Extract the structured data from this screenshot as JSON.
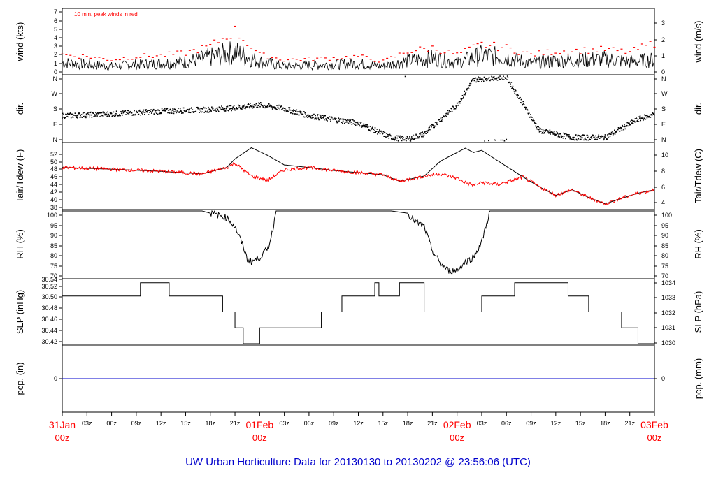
{
  "footer": {
    "title": "UW Urban Horticulture Data for 20130130  to  20130202 @ 23:56:06  (UTC)"
  },
  "colors": {
    "red": "#ff0000",
    "blue": "#0000cc",
    "black": "#000000",
    "title_blue": "#0000cc"
  },
  "x_axis": {
    "hour_ticks": [
      "03z",
      "06z",
      "09z",
      "12z",
      "15z",
      "18z",
      "21z",
      "03z",
      "06z",
      "09z",
      "12z",
      "15z",
      "18z",
      "21z",
      "03z",
      "06z",
      "09z",
      "12z",
      "15z",
      "18z",
      "21z"
    ],
    "day_labels": [
      {
        "day": "31Jan",
        "hour": "00z"
      },
      {
        "day": "01Feb",
        "hour": "00z"
      },
      {
        "day": "02Feb",
        "hour": "00z"
      },
      {
        "day": "03Feb",
        "hour": "00z"
      }
    ]
  },
  "chart_data": [
    {
      "type": "line",
      "panel": "wind",
      "ylabel_left": "wind (kts)",
      "ylabel_right": "wind (m/s)",
      "left_ticks": [
        "0",
        "1",
        "2",
        "3",
        "4",
        "5",
        "6",
        "7"
      ],
      "right_ticks": [
        "0",
        "1",
        "2",
        "3"
      ],
      "ylim": [
        0,
        7.5
      ],
      "annotation": "10 min. peak winds in red",
      "x_hours": [
        0,
        3,
        6,
        9,
        12,
        15,
        18,
        21,
        24,
        27,
        30,
        33,
        36,
        39,
        42,
        45,
        48,
        51,
        54,
        57,
        60,
        63,
        66,
        69,
        72
      ],
      "series": [
        {
          "name": "wind",
          "color": "#000000",
          "values": [
            1.2,
            1.0,
            0.8,
            1.0,
            1.1,
            1.3,
            1.8,
            2.4,
            1.3,
            0.8,
            0.9,
            1.0,
            1.1,
            0.8,
            1.4,
            1.7,
            1.2,
            2.0,
            1.8,
            1.1,
            1.4,
            1.5,
            1.6,
            1.3,
            1.5
          ]
        },
        {
          "name": "peak",
          "color": "#ff0000",
          "values": [
            2.2,
            2.0,
            1.6,
            2.0,
            2.1,
            2.4,
            3.2,
            5.0,
            2.2,
            1.6,
            1.7,
            1.8,
            2.0,
            1.4,
            2.6,
            3.0,
            2.2,
            3.4,
            3.0,
            2.2,
            2.6,
            2.7,
            2.8,
            2.5,
            3.6
          ]
        }
      ]
    },
    {
      "type": "scatter",
      "panel": "dir",
      "ylabel_left": "dir.",
      "ylabel_right": "dir.",
      "left_ticks": [
        "N",
        "E",
        "S",
        "W",
        "N"
      ],
      "right_ticks": [
        "N",
        "E",
        "S",
        "W",
        "N"
      ],
      "ylim": [
        0,
        360
      ]
    },
    {
      "type": "line",
      "panel": "temperature",
      "ylabel_left": "Tair/Tdew (F)",
      "ylabel_right": "Tair/Tdew (C)",
      "left_ticks": [
        "38",
        "40",
        "42",
        "44",
        "46",
        "48",
        "50",
        "52"
      ],
      "right_ticks": [
        "4",
        "6",
        "8",
        "10"
      ],
      "ylim": [
        37.5,
        52.5
      ],
      "x_hours": [
        0,
        6,
        12,
        17,
        20,
        21,
        23,
        25,
        27,
        30,
        33,
        36,
        39,
        41,
        44,
        46,
        48,
        49,
        50,
        51,
        53,
        56,
        58,
        60,
        62,
        64,
        66,
        68,
        70,
        72
      ],
      "series": [
        {
          "name": "Tair",
          "color": "#000000",
          "values": [
            47.0,
            46.6,
            46.1,
            45.5,
            47.0,
            49.0,
            51.6,
            49.8,
            47.6,
            47.0,
            46.3,
            45.8,
            45.3,
            43.8,
            45.0,
            48.5,
            50.5,
            51.5,
            50.5,
            51.0,
            48.5,
            44.8,
            42.5,
            40.5,
            41.8,
            40.0,
            38.5,
            39.8,
            41.0,
            41.8
          ]
        },
        {
          "name": "Tdew",
          "color": "#ff0000",
          "values": [
            47.0,
            46.6,
            46.1,
            45.5,
            47.0,
            48.0,
            45.0,
            44.0,
            46.5,
            47.0,
            46.3,
            45.8,
            45.3,
            43.8,
            45.0,
            45.5,
            44.5,
            43.5,
            42.8,
            43.5,
            43.0,
            44.8,
            42.5,
            40.5,
            41.8,
            40.0,
            38.5,
            39.8,
            41.0,
            41.8
          ]
        }
      ]
    },
    {
      "type": "line",
      "panel": "rh",
      "ylabel_left": "RH (%)",
      "ylabel_right": "RH (%)",
      "left_ticks": [
        "70",
        "75",
        "80",
        "85",
        "90",
        "95",
        "100"
      ],
      "right_ticks": [
        "70",
        "75",
        "80",
        "85",
        "90",
        "95",
        "100"
      ],
      "ylim": [
        70,
        100
      ],
      "x_hours": [
        0,
        17,
        19,
        20,
        21,
        22,
        22.5,
        23,
        24,
        25,
        25.5,
        26,
        30,
        40,
        42,
        43,
        44,
        45,
        46,
        47,
        48,
        49,
        50,
        51,
        52,
        72
      ],
      "series": [
        {
          "name": "RH",
          "color": "#000000",
          "values": [
            100,
            100,
            98,
            97,
            93,
            84,
            78,
            77,
            79,
            83,
            90,
            100,
            100,
            100,
            99,
            95,
            93,
            82,
            76,
            73,
            73,
            77,
            79,
            86,
            100,
            100
          ]
        }
      ]
    },
    {
      "type": "line",
      "panel": "slp",
      "ylabel_left": "SLP (inHg)",
      "ylabel_right": "SLP (hPa)",
      "left_ticks": [
        "30.42",
        "30.44",
        "30.46",
        "30.48",
        "30.50",
        "30.52",
        "30.54"
      ],
      "right_ticks": [
        "1030",
        "1031",
        "1032",
        "1033",
        "1034"
      ],
      "ylim": [
        30.42,
        30.54
      ],
      "x_hours": [
        0,
        9.5,
        13,
        19.5,
        21,
        22,
        24,
        31.5,
        34,
        38,
        38.5,
        41,
        44,
        51,
        51.5,
        55,
        61.5,
        64,
        68,
        70,
        72
      ],
      "series": [
        {
          "name": "SLP",
          "color": "#000000",
          "values": [
            30.51,
            30.535,
            30.51,
            30.48,
            30.45,
            30.42,
            30.45,
            30.48,
            30.51,
            30.535,
            30.51,
            30.535,
            30.48,
            30.51,
            30.51,
            30.535,
            30.51,
            30.48,
            30.45,
            30.42,
            30.42
          ]
        }
      ]
    },
    {
      "type": "line",
      "panel": "precip",
      "ylabel_left": "pcp. (in)",
      "ylabel_right": "pcp. (mm)",
      "left_ticks": [
        "0"
      ],
      "right_ticks": [
        "0"
      ],
      "series": [
        {
          "name": "pcp",
          "color": "#0000cc",
          "values": [
            0,
            0
          ]
        }
      ]
    }
  ]
}
